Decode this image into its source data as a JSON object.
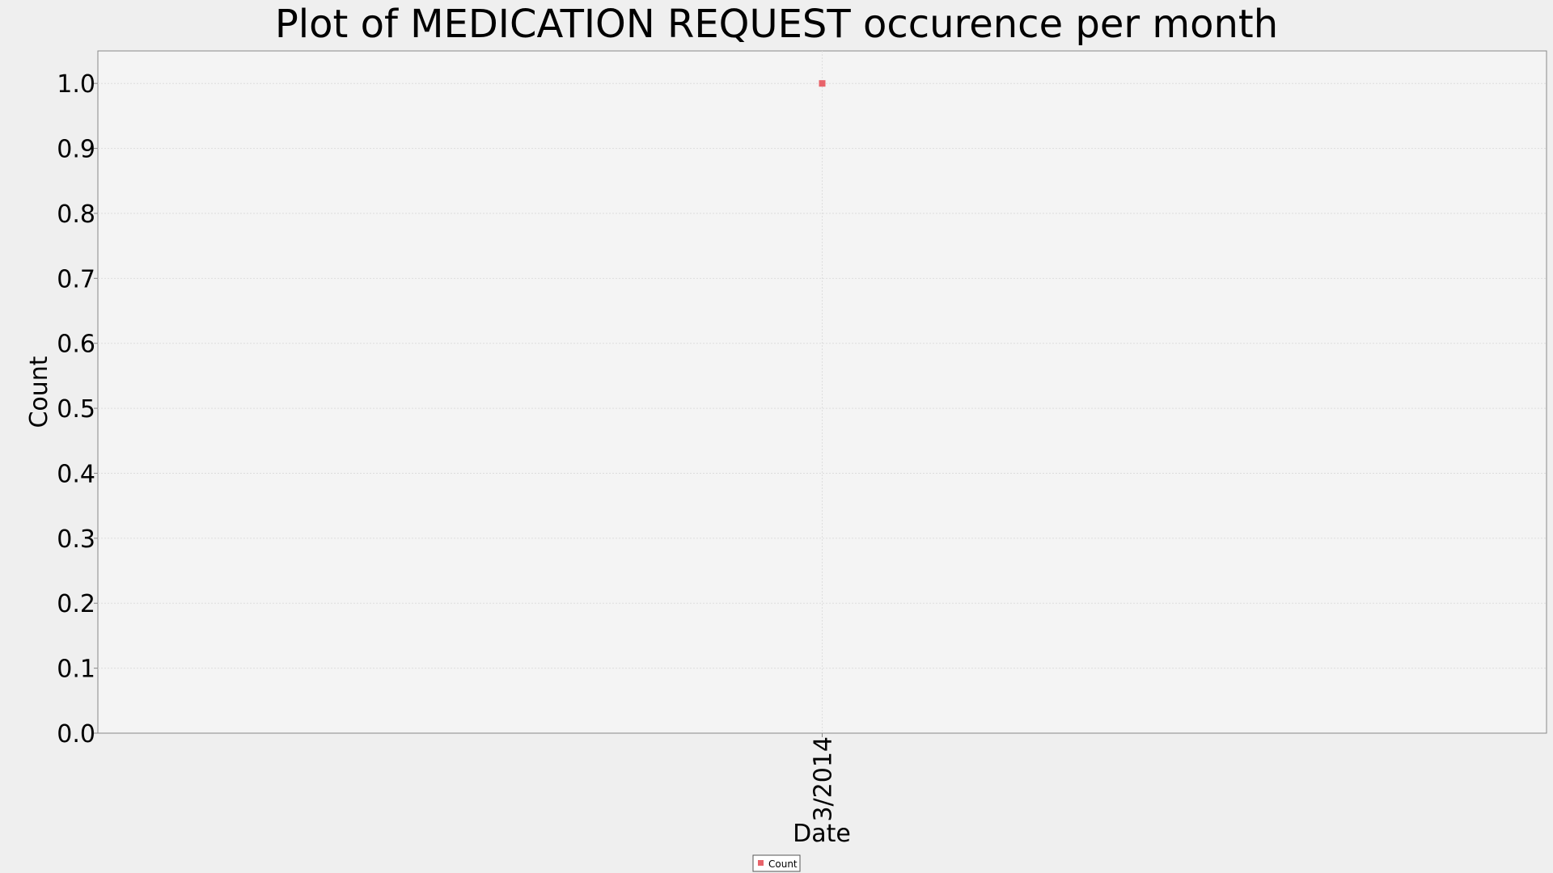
{
  "chart_data": {
    "type": "scatter",
    "title": "Plot of MEDICATION REQUEST occurence per month",
    "xlabel": "Date",
    "ylabel": "Count",
    "categories": [
      "3/2014"
    ],
    "series": [
      {
        "name": "Count",
        "values": [
          1.0
        ]
      }
    ],
    "ylim": [
      0,
      1.05
    ],
    "yticks": [
      "0.0",
      "0.1",
      "0.2",
      "0.3",
      "0.4",
      "0.5",
      "0.6",
      "0.7",
      "0.8",
      "0.9",
      "1.0"
    ],
    "grid": true,
    "legend": "bottom-center",
    "colors": {
      "background": "#efefef",
      "plot_background": "#f4f4f4",
      "grid": "#dddddd",
      "marker": "#e8636a"
    }
  }
}
